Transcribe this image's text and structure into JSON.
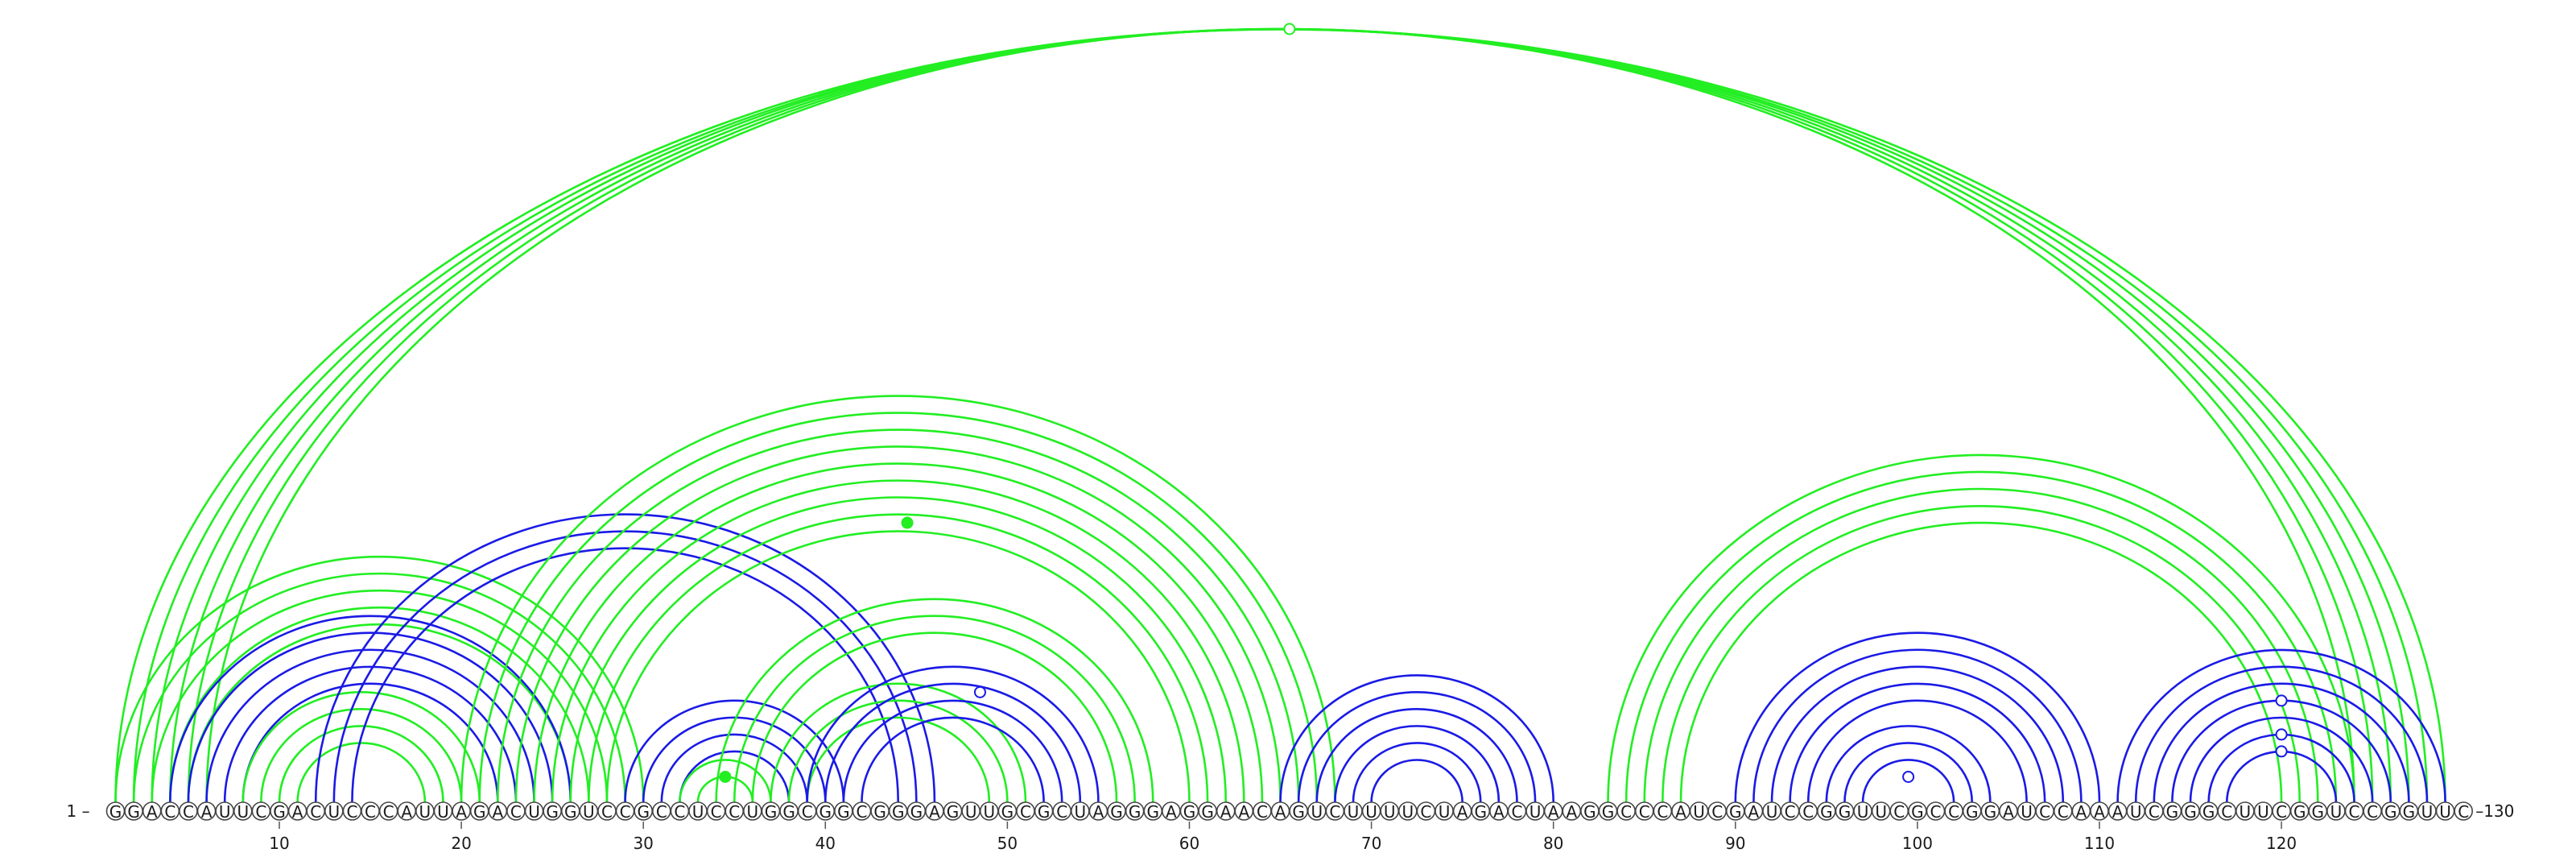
{
  "diagram": {
    "sequence": "GGACCAUUCGACUCCCAUUAGACUGGUCCGCCUCCUGGCGGCGGGAGUUGCGCUAGGGAGGAACAGUCUUUUCUAGACUAAGGCCCAUCGAUCCGGUUCGCCGGAUCCAAAUCGGGCUUCGGUCCGGUUC",
    "start_label": "1",
    "end_label": "130",
    "ticks": [
      10,
      20,
      30,
      40,
      50,
      60,
      70,
      80,
      90,
      100,
      110,
      120
    ],
    "colors": {
      "green": "#22ee22",
      "blue": "#1a1ae6",
      "outline": "#444444"
    },
    "helices": [
      {
        "color": "green",
        "pairs": [
          [
            1,
            129
          ],
          [
            2,
            128
          ],
          [
            3,
            127
          ],
          [
            4,
            126
          ],
          [
            5,
            125
          ],
          [
            6,
            124
          ]
        ]
      },
      {
        "color": "green",
        "pairs": [
          [
            1,
            30
          ],
          [
            2,
            29
          ],
          [
            3,
            28
          ],
          [
            4,
            27
          ],
          [
            5,
            26
          ]
        ]
      },
      {
        "color": "blue",
        "pairs": [
          [
            4,
            26
          ],
          [
            5,
            25
          ],
          [
            6,
            24
          ],
          [
            7,
            23
          ],
          [
            8,
            22
          ]
        ]
      },
      {
        "color": "green",
        "pairs": [
          [
            8,
            21
          ],
          [
            9,
            20
          ],
          [
            10,
            19
          ],
          [
            11,
            18
          ]
        ]
      },
      {
        "color": "blue",
        "pairs": [
          [
            12,
            46
          ],
          [
            13,
            45
          ],
          [
            14,
            44
          ]
        ]
      },
      {
        "color": "green",
        "pairs": [
          [
            20,
            68
          ],
          [
            21,
            67
          ],
          [
            22,
            66
          ],
          [
            23,
            65
          ],
          [
            24,
            64
          ],
          [
            25,
            63
          ],
          [
            26,
            62
          ],
          [
            27,
            61
          ],
          [
            28,
            60
          ]
        ]
      },
      {
        "color": "blue",
        "pairs": [
          [
            29,
            41
          ],
          [
            30,
            40
          ],
          [
            31,
            39
          ],
          [
            32,
            38
          ]
        ]
      },
      {
        "color": "green",
        "pairs": [
          [
            32,
            37
          ],
          [
            33,
            36
          ]
        ]
      },
      {
        "color": "green",
        "pairs": [
          [
            34,
            58
          ],
          [
            35,
            57
          ],
          [
            36,
            56
          ]
        ]
      },
      {
        "color": "green",
        "pairs": [
          [
            37,
            51
          ],
          [
            38,
            50
          ],
          [
            39,
            49
          ]
        ]
      },
      {
        "color": "blue",
        "pairs": [
          [
            39,
            55
          ],
          [
            40,
            54
          ],
          [
            41,
            53
          ],
          [
            42,
            52
          ]
        ]
      },
      {
        "color": "blue",
        "pairs": [
          [
            65,
            80
          ],
          [
            66,
            79
          ],
          [
            67,
            78
          ],
          [
            68,
            77
          ],
          [
            69,
            76
          ],
          [
            70,
            75
          ]
        ]
      },
      {
        "color": "green",
        "pairs": [
          [
            83,
            124
          ],
          [
            84,
            123
          ],
          [
            85,
            122
          ],
          [
            86,
            121
          ],
          [
            87,
            120
          ]
        ]
      },
      {
        "color": "blue",
        "pairs": [
          [
            90,
            110
          ],
          [
            91,
            109
          ],
          [
            92,
            108
          ],
          [
            93,
            107
          ],
          [
            94,
            106
          ],
          [
            95,
            104
          ],
          [
            96,
            103
          ],
          [
            97,
            102
          ]
        ]
      },
      {
        "color": "blue",
        "pairs": [
          [
            111,
            129
          ],
          [
            112,
            128
          ],
          [
            113,
            127
          ],
          [
            114,
            126
          ],
          [
            115,
            125
          ],
          [
            116,
            124
          ],
          [
            117,
            123
          ]
        ]
      }
    ],
    "markers": [
      {
        "pair": [
          6,
          125
        ],
        "color": "green",
        "filled": false
      },
      {
        "pair": [
          28,
          61
        ],
        "color": "green",
        "filled": true
      },
      {
        "pair": [
          33,
          36
        ],
        "color": "green",
        "filled": true
      },
      {
        "pair": [
          42,
          55
        ],
        "color": "blue",
        "filled": false
      },
      {
        "pair": [
          98,
          101
        ],
        "color": "blue",
        "filled": false
      },
      {
        "pair": [
          114,
          126
        ],
        "color": "blue",
        "filled": false
      },
      {
        "pair": [
          116,
          124
        ],
        "color": "blue",
        "filled": false
      },
      {
        "pair": [
          117,
          123
        ],
        "color": "blue",
        "filled": false
      }
    ]
  }
}
